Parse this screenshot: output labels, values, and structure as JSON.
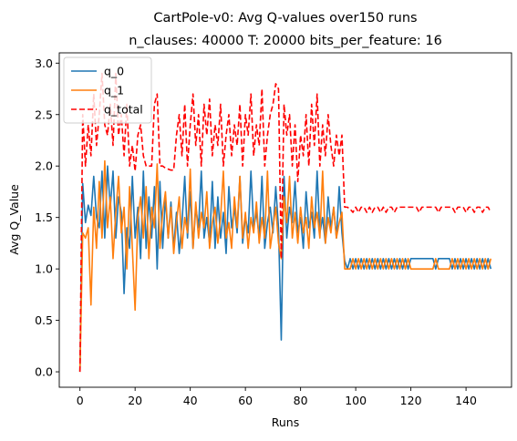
{
  "chart_data": {
    "type": "line",
    "title": "CartPole-v0: Avg Q-values over150 runs",
    "subtitle": "n_clauses: 40000 T: 20000 bits_per_feature: 16",
    "xlabel": "Runs",
    "ylabel": "Avg Q_Value",
    "xlim": [
      -7.5,
      156.5
    ],
    "ylim": [
      -0.15,
      3.1
    ],
    "xticks": [
      0,
      20,
      40,
      60,
      80,
      100,
      120,
      140
    ],
    "yticks": [
      0.0,
      0.5,
      1.0,
      1.5,
      2.0,
      2.5,
      3.0
    ],
    "ytick_labels": [
      "0.0",
      "0.5",
      "1.0",
      "1.5",
      "2.0",
      "2.5",
      "3.0"
    ],
    "grid": false,
    "legend_position": "top-left",
    "colors": {
      "q_0": "#1f77b4",
      "q_1": "#ff7f0e",
      "q_total": "#ff0000"
    },
    "series": [
      {
        "name": "q_0",
        "values": [
          0.0,
          1.83,
          1.45,
          1.62,
          1.52,
          1.9,
          1.5,
          1.4,
          1.95,
          1.3,
          2.0,
          1.6,
          1.95,
          1.3,
          1.7,
          1.55,
          0.76,
          1.4,
          1.2,
          1.9,
          1.3,
          1.6,
          1.1,
          1.95,
          1.2,
          1.7,
          1.3,
          1.8,
          1.0,
          1.85,
          1.2,
          1.7,
          1.3,
          1.65,
          1.2,
          1.55,
          1.15,
          1.45,
          1.9,
          1.3,
          1.75,
          1.2,
          1.6,
          1.4,
          1.95,
          1.3,
          1.5,
          1.25,
          1.85,
          1.2,
          1.7,
          1.3,
          1.55,
          1.15,
          1.8,
          1.4,
          1.6,
          1.35,
          1.9,
          1.25,
          1.5,
          1.35,
          1.95,
          1.4,
          1.55,
          1.3,
          1.9,
          1.2,
          1.45,
          1.6,
          1.35,
          1.8,
          1.4,
          0.31,
          1.9,
          1.3,
          1.6,
          1.45,
          1.85,
          1.35,
          1.5,
          1.2,
          1.75,
          1.4,
          1.55,
          1.3,
          1.95,
          1.35,
          1.5,
          1.25,
          1.7,
          1.4,
          1.6,
          1.3,
          1.8,
          1.35,
          1.08,
          1.0,
          1.1,
          1.0,
          1.1,
          1.0,
          1.1,
          1.0,
          1.1,
          1.0,
          1.1,
          1.0,
          1.1,
          1.0,
          1.1,
          1.0,
          1.1,
          1.0,
          1.1,
          1.0,
          1.1,
          1.0,
          1.1,
          1.0,
          1.1,
          1.1,
          1.1,
          1.1,
          1.1,
          1.1,
          1.1,
          1.1,
          1.1,
          1.0,
          1.1,
          1.1,
          1.1,
          1.1,
          1.1,
          1.0,
          1.1,
          1.0,
          1.1,
          1.0,
          1.1,
          1.0,
          1.1,
          1.0,
          1.1,
          1.0,
          1.1,
          1.0,
          1.1,
          1.0
        ]
      },
      {
        "name": "q_1",
        "values": [
          0.0,
          1.35,
          1.3,
          1.4,
          0.65,
          1.6,
          1.2,
          1.85,
          1.3,
          2.05,
          1.4,
          1.7,
          1.1,
          1.55,
          1.9,
          1.35,
          1.6,
          1.0,
          1.8,
          1.2,
          0.6,
          1.5,
          1.7,
          1.3,
          1.8,
          1.1,
          1.6,
          1.4,
          2.02,
          1.2,
          1.55,
          1.75,
          1.3,
          1.6,
          1.15,
          1.45,
          1.7,
          1.2,
          1.5,
          1.35,
          1.97,
          1.2,
          1.65,
          1.3,
          1.55,
          1.4,
          1.75,
          1.2,
          1.45,
          1.6,
          1.25,
          1.5,
          1.95,
          1.3,
          1.45,
          1.2,
          1.7,
          1.4,
          1.9,
          1.3,
          1.55,
          1.2,
          1.5,
          1.35,
          1.65,
          1.25,
          1.5,
          1.3,
          1.95,
          1.2,
          1.4,
          1.6,
          1.25,
          1.1,
          1.7,
          1.45,
          1.9,
          1.3,
          1.55,
          1.25,
          1.6,
          1.35,
          1.5,
          1.2,
          1.7,
          1.4,
          1.55,
          1.3,
          1.95,
          1.25,
          1.5,
          1.35,
          1.6,
          1.3,
          1.45,
          1.55,
          1.0,
          1.0,
          1.0,
          1.1,
          1.0,
          1.1,
          1.0,
          1.1,
          1.0,
          1.1,
          1.0,
          1.1,
          1.0,
          1.1,
          1.0,
          1.1,
          1.0,
          1.1,
          1.0,
          1.1,
          1.0,
          1.1,
          1.0,
          1.1,
          1.0,
          1.0,
          1.0,
          1.0,
          1.0,
          1.0,
          1.0,
          1.0,
          1.0,
          1.1,
          1.0,
          1.0,
          1.0,
          1.0,
          1.0,
          1.1,
          1.0,
          1.1,
          1.0,
          1.1,
          1.0,
          1.1,
          1.0,
          1.1,
          1.0,
          1.1,
          1.0,
          1.1,
          1.0,
          1.1
        ]
      },
      {
        "name": "q_total",
        "values": [
          0.0,
          2.5,
          2.0,
          2.4,
          2.1,
          2.7,
          2.2,
          2.5,
          2.9,
          2.4,
          2.3,
          2.6,
          2.2,
          2.9,
          2.3,
          2.5,
          2.1,
          2.6,
          2.0,
          2.2,
          1.95,
          2.3,
          2.4,
          2.1,
          2.0,
          2.0,
          2.0,
          2.6,
          2.7,
          2.0,
          2.0,
          1.98,
          1.97,
          1.96,
          1.96,
          2.3,
          2.5,
          2.1,
          2.6,
          2.0,
          2.4,
          2.7,
          2.2,
          2.5,
          2.0,
          2.6,
          2.3,
          2.65,
          2.1,
          2.4,
          2.2,
          2.6,
          2.0,
          2.3,
          2.5,
          2.1,
          2.4,
          2.2,
          2.6,
          2.0,
          2.5,
          2.3,
          2.7,
          2.1,
          2.4,
          2.2,
          2.75,
          2.0,
          2.3,
          2.5,
          2.6,
          2.8,
          2.75,
          1.1,
          2.6,
          2.3,
          2.5,
          2.0,
          2.4,
          1.85,
          2.3,
          2.1,
          2.5,
          2.0,
          2.6,
          2.2,
          2.7,
          2.0,
          2.4,
          2.1,
          2.5,
          2.2,
          2.0,
          2.3,
          2.1,
          2.3,
          1.6,
          1.6,
          1.58,
          1.55,
          1.6,
          1.55,
          1.6,
          1.6,
          1.55,
          1.6,
          1.55,
          1.6,
          1.6,
          1.55,
          1.6,
          1.55,
          1.6,
          1.6,
          1.55,
          1.6,
          1.6,
          1.6,
          1.6,
          1.6,
          1.6,
          1.6,
          1.6,
          1.55,
          1.6,
          1.6,
          1.6,
          1.6,
          1.6,
          1.6,
          1.55,
          1.6,
          1.6,
          1.6,
          1.6,
          1.6,
          1.55,
          1.6,
          1.6,
          1.6,
          1.55,
          1.6,
          1.6,
          1.55,
          1.6,
          1.6,
          1.55,
          1.6,
          1.6,
          1.55
        ]
      }
    ]
  }
}
